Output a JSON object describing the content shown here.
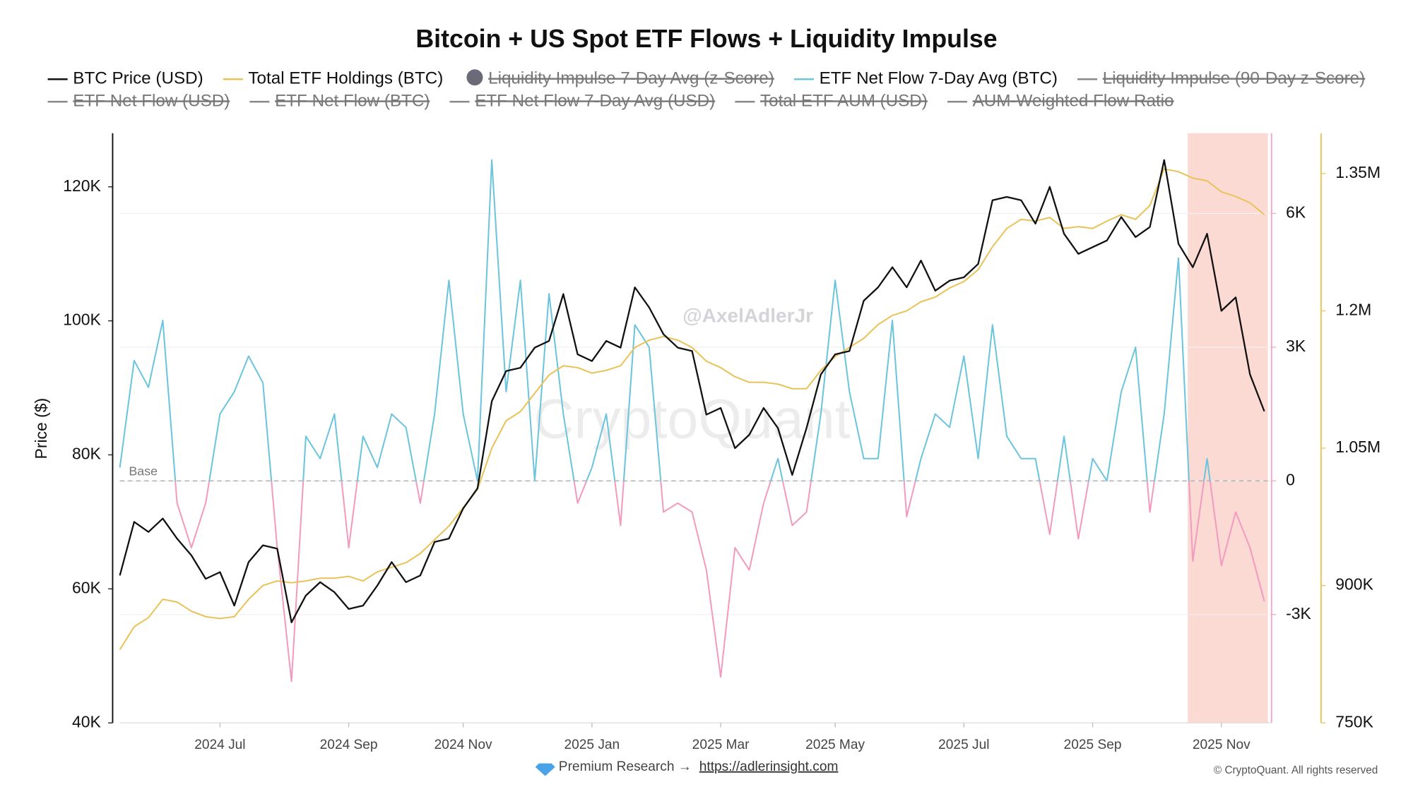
{
  "chart_data": {
    "type": "line",
    "title": "Bitcoin + US Spot ETF Flows + Liquidity Impulse",
    "y_label": "Price ($)",
    "categories": [
      null,
      null,
      null,
      null,
      null,
      null,
      null,
      "2024 Jul",
      null,
      null,
      null,
      null,
      null,
      null,
      null,
      null,
      "2024 Sep",
      null,
      null,
      null,
      null,
      null,
      null,
      null,
      "2024 Nov",
      null,
      null,
      null,
      null,
      null,
      null,
      null,
      null,
      "2025 Jan",
      null,
      null,
      null,
      null,
      null,
      null,
      null,
      null,
      "2025 Mar",
      null,
      null,
      null,
      null,
      null,
      null,
      null,
      "2025 May",
      null,
      null,
      null,
      null,
      null,
      null,
      null,
      null,
      "2025 Jul",
      null,
      null,
      null,
      null,
      null,
      null,
      null,
      null,
      "2025 Sep",
      null,
      null,
      null,
      null,
      null,
      null,
      null,
      null,
      "2025 Nov",
      null,
      null,
      null
    ],
    "series": [
      {
        "name": "BTC Price (USD)",
        "color": "#111111",
        "values": [
          62000,
          70000,
          68500,
          70500,
          67500,
          65000,
          61500,
          62500,
          57500,
          64000,
          66500,
          66000,
          55000,
          59000,
          61000,
          59500,
          57000,
          57500,
          60500,
          64000,
          61000,
          62000,
          67000,
          67500,
          72000,
          75000,
          88000,
          92500,
          93000,
          96000,
          97000,
          104000,
          95000,
          94000,
          97000,
          96000,
          105000,
          102000,
          98000,
          96000,
          95500,
          86000,
          87000,
          81000,
          83000,
          87000,
          84000,
          77000,
          84000,
          92000,
          95000,
          95500,
          103000,
          105000,
          108000,
          105000,
          109000,
          104500,
          106000,
          106500,
          108500,
          118000,
          118500,
          118000,
          114500,
          120000,
          113000,
          110000,
          111000,
          112000,
          115500,
          112500,
          114000,
          124000,
          111500,
          108000,
          113000,
          101500,
          103500,
          92000,
          86500
        ]
      },
      {
        "name": "Total ETF Holdings (BTC)",
        "color": "#e9c35a",
        "axis": "y3",
        "values": [
          830000,
          855000,
          865000,
          885000,
          882000,
          872000,
          866000,
          864000,
          866000,
          885000,
          900000,
          905000,
          903000,
          905000,
          908000,
          908000,
          910000,
          905000,
          915000,
          920000,
          925000,
          935000,
          950000,
          965000,
          985000,
          1005000,
          1050000,
          1080000,
          1090000,
          1110000,
          1130000,
          1140000,
          1138000,
          1132000,
          1135000,
          1140000,
          1160000,
          1168000,
          1172000,
          1168000,
          1160000,
          1145000,
          1138000,
          1128000,
          1122000,
          1122000,
          1120000,
          1115000,
          1115000,
          1135000,
          1150000,
          1160000,
          1170000,
          1185000,
          1195000,
          1200000,
          1210000,
          1215000,
          1225000,
          1232000,
          1245000,
          1270000,
          1290000,
          1300000,
          1298000,
          1302000,
          1290000,
          1292000,
          1290000,
          1298000,
          1305000,
          1300000,
          1315000,
          1355000,
          1352000,
          1345000,
          1342000,
          1330000,
          1325000,
          1318000,
          1305000
        ]
      },
      {
        "name": "Liquidity Impulse 7-Day Avg (z-Score)",
        "visible": false,
        "marker": "circle"
      },
      {
        "name": "ETF Net Flow 7-Day Avg (BTC)",
        "color": "#6cc5dc",
        "negative_color": "#f29bbf",
        "axis": "y2",
        "values": [
          300,
          2700,
          2100,
          3600,
          -500,
          -1500,
          -500,
          1500,
          2000,
          2800,
          2200,
          -1500,
          -4500,
          1000,
          500,
          1500,
          -1500,
          1000,
          300,
          1500,
          1200,
          -500,
          1500,
          4500,
          1500,
          0,
          7200,
          2000,
          4500,
          0,
          4200,
          1500,
          -500,
          300,
          1500,
          -1000,
          3500,
          3000,
          -700,
          -500,
          -700,
          -2000,
          -4400,
          -1500,
          -2000,
          -500,
          500,
          -1000,
          -700,
          1500,
          4500,
          2000,
          500,
          500,
          3600,
          -800,
          500,
          1500,
          1200,
          2800,
          500,
          3500,
          1000,
          500,
          500,
          -1200,
          1000,
          -1300,
          500,
          0,
          2000,
          3000,
          -700,
          1500,
          5000,
          -1800,
          500,
          -1900,
          -700,
          -1500,
          -2700
        ]
      },
      {
        "name": "Liquidity Impulse (90-Day z-Score)",
        "visible": false
      },
      {
        "name": "ETF Net Flow (USD)",
        "visible": false
      },
      {
        "name": "ETF Net Flow (BTC)",
        "visible": false
      },
      {
        "name": "ETF Net Flow 7-Day Avg (USD)",
        "visible": false
      },
      {
        "name": "Total ETF AUM (USD)",
        "visible": false
      },
      {
        "name": "AUM-Weighted Flow Ratio",
        "visible": false
      }
    ],
    "ylim": [
      40000,
      128000
    ],
    "yticks": [
      {
        "value": 40000,
        "label": "40K"
      },
      {
        "value": 60000,
        "label": "60K"
      },
      {
        "value": 80000,
        "label": "80K"
      },
      {
        "value": 100000,
        "label": "100K"
      },
      {
        "value": 120000,
        "label": "120K"
      }
    ],
    "y2lim": [
      -5430,
      7800
    ],
    "y2ticks": [
      {
        "value": -3000,
        "label": "-3K"
      },
      0,
      {
        "value": 3000,
        "label": "3K"
      },
      {
        "value": 6000,
        "label": "6K"
      }
    ],
    "y3lim": [
      750000,
      1394000
    ],
    "y3ticks": [
      {
        "value": 750000,
        "label": "750K"
      },
      {
        "value": 900000,
        "label": "900K"
      },
      {
        "value": 1050000,
        "label": "1.05M"
      },
      {
        "value": 1200000,
        "label": "1.2M"
      },
      {
        "value": 1350000,
        "label": "1.35M"
      }
    ],
    "base_line": {
      "label": "Base",
      "value": 0,
      "axis": "y2"
    },
    "grid": true,
    "watermarks": [
      "@AxelAdlerJr",
      "CryptoQuant"
    ],
    "footer": {
      "text": "Premium Research →",
      "link": "https://adlerinsight.com",
      "copyright": "© CryptoQuant. All rights reserved"
    }
  }
}
